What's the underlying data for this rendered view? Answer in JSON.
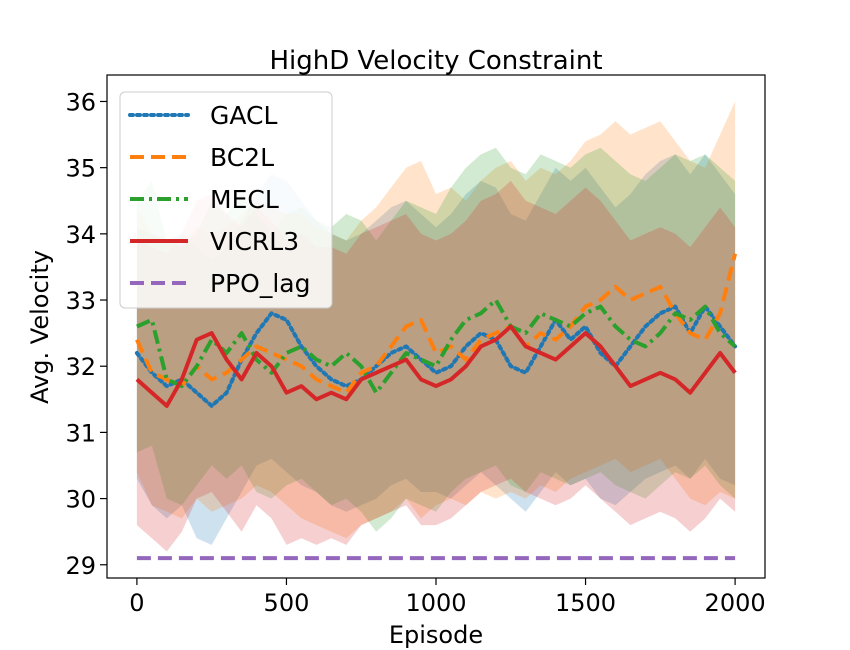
{
  "chart_data": {
    "type": "line",
    "title": "HighD Velocity Constraint",
    "xlabel": "Episode",
    "ylabel": "Avg. Velocity",
    "xlim": [
      -100,
      2100
    ],
    "ylim": [
      28.8,
      36.4
    ],
    "xticks": [
      0,
      500,
      1000,
      1500,
      2000
    ],
    "yticks": [
      29,
      30,
      31,
      32,
      33,
      34,
      35,
      36
    ],
    "grid": false,
    "legend_position": "top-left",
    "series": [
      {
        "name": "GACL",
        "color": "#1f77b4",
        "style": "dotted",
        "x": [
          0,
          50,
          100,
          150,
          200,
          250,
          300,
          350,
          400,
          450,
          500,
          550,
          600,
          650,
          700,
          750,
          800,
          850,
          900,
          950,
          1000,
          1050,
          1100,
          1150,
          1200,
          1250,
          1300,
          1350,
          1400,
          1450,
          1500,
          1550,
          1600,
          1650,
          1700,
          1750,
          1800,
          1850,
          1900,
          1950,
          2000
        ],
        "y": [
          32.2,
          31.9,
          31.7,
          31.8,
          31.6,
          31.4,
          31.6,
          32.1,
          32.5,
          32.8,
          32.7,
          32.3,
          32.0,
          31.8,
          31.7,
          31.8,
          32.0,
          32.2,
          32.3,
          32.1,
          31.9,
          32.0,
          32.3,
          32.5,
          32.4,
          32.0,
          31.9,
          32.3,
          32.7,
          32.4,
          32.6,
          32.2,
          32.0,
          32.3,
          32.6,
          32.8,
          32.9,
          32.5,
          32.9,
          32.6,
          32.3
        ],
        "lower": [
          30.3,
          29.9,
          29.7,
          29.9,
          29.4,
          29.3,
          29.7,
          30.1,
          30.5,
          30.6,
          30.4,
          30.2,
          30.1,
          29.9,
          29.8,
          29.9,
          30.0,
          30.2,
          30.3,
          30.1,
          30.1,
          30.0,
          30.2,
          30.4,
          30.2,
          30.0,
          29.8,
          30.1,
          30.4,
          30.2,
          30.3,
          30.0,
          29.9,
          30.1,
          30.3,
          30.4,
          30.5,
          30.3,
          30.6,
          30.3,
          30.2
        ],
        "upper": [
          34.1,
          34.0,
          33.9,
          34.0,
          33.8,
          33.6,
          33.8,
          34.2,
          34.6,
          34.9,
          34.8,
          34.5,
          34.2,
          34.0,
          33.9,
          34.0,
          34.2,
          34.4,
          34.5,
          34.3,
          34.1,
          34.3,
          34.6,
          34.8,
          34.7,
          34.3,
          34.2,
          34.6,
          35.0,
          34.8,
          35.0,
          34.7,
          34.4,
          34.6,
          34.9,
          35.1,
          35.2,
          34.9,
          35.2,
          34.9,
          34.6
        ]
      },
      {
        "name": "BC2L",
        "color": "#ff7f0e",
        "style": "dashed",
        "x": [
          0,
          50,
          100,
          150,
          200,
          250,
          300,
          350,
          400,
          450,
          500,
          550,
          600,
          650,
          700,
          750,
          800,
          850,
          900,
          950,
          1000,
          1050,
          1100,
          1150,
          1200,
          1250,
          1300,
          1350,
          1400,
          1450,
          1500,
          1550,
          1600,
          1650,
          1700,
          1750,
          1800,
          1850,
          1900,
          1950,
          2000
        ],
        "y": [
          32.4,
          31.9,
          31.8,
          31.7,
          32.0,
          31.8,
          31.9,
          32.1,
          32.3,
          32.2,
          32.1,
          32.0,
          31.8,
          31.7,
          31.6,
          31.9,
          32.0,
          32.3,
          32.6,
          32.7,
          32.2,
          32.3,
          32.1,
          32.4,
          32.5,
          32.6,
          32.3,
          32.5,
          32.4,
          32.6,
          32.9,
          33.0,
          33.2,
          33.0,
          33.1,
          33.2,
          32.8,
          32.5,
          32.4,
          32.8,
          33.7
        ],
        "lower": [
          30.4,
          29.9,
          29.8,
          29.7,
          30.0,
          29.8,
          29.9,
          30.0,
          30.2,
          30.1,
          29.9,
          29.7,
          29.6,
          29.5,
          29.4,
          29.6,
          29.7,
          29.8,
          30.0,
          29.7,
          29.9,
          30.0,
          29.9,
          30.1,
          30.0,
          30.1,
          30.0,
          30.2,
          30.1,
          30.3,
          30.4,
          30.5,
          30.6,
          30.4,
          30.5,
          30.6,
          30.3,
          30.0,
          29.9,
          30.1,
          30.0
        ],
        "upper": [
          34.4,
          34.0,
          33.9,
          33.8,
          34.1,
          34.0,
          34.1,
          34.3,
          34.5,
          34.4,
          34.3,
          34.3,
          34.1,
          34.0,
          33.9,
          34.2,
          34.4,
          34.7,
          35.0,
          35.1,
          34.6,
          34.7,
          34.5,
          34.8,
          35.0,
          35.1,
          34.8,
          35.0,
          34.9,
          35.1,
          35.4,
          35.5,
          35.7,
          35.5,
          35.6,
          35.7,
          35.4,
          35.1,
          35.0,
          35.5,
          36.0
        ]
      },
      {
        "name": "MECL",
        "color": "#2ca02c",
        "style": "dashdot",
        "x": [
          0,
          50,
          100,
          150,
          200,
          250,
          300,
          350,
          400,
          450,
          500,
          550,
          600,
          650,
          700,
          750,
          800,
          850,
          900,
          950,
          1000,
          1050,
          1100,
          1150,
          1200,
          1250,
          1300,
          1350,
          1400,
          1450,
          1500,
          1550,
          1600,
          1650,
          1700,
          1750,
          1800,
          1850,
          1900,
          1950,
          2000
        ],
        "y": [
          32.6,
          32.7,
          31.8,
          31.7,
          32.0,
          32.4,
          32.2,
          32.5,
          32.1,
          31.9,
          32.2,
          32.3,
          32.1,
          32.0,
          32.2,
          32.0,
          31.6,
          31.9,
          32.2,
          32.1,
          32.0,
          32.4,
          32.7,
          32.8,
          33.0,
          32.6,
          32.5,
          32.8,
          32.7,
          32.6,
          32.8,
          32.9,
          32.6,
          32.4,
          32.3,
          32.5,
          32.8,
          32.7,
          32.9,
          32.5,
          32.3
        ],
        "lower": [
          30.7,
          30.8,
          30.0,
          29.9,
          30.2,
          30.5,
          30.3,
          30.5,
          30.1,
          30.0,
          30.2,
          30.3,
          30.1,
          29.9,
          30.0,
          29.8,
          29.5,
          29.7,
          30.0,
          29.9,
          29.8,
          30.1,
          30.3,
          30.4,
          30.5,
          30.2,
          30.1,
          30.4,
          30.3,
          30.2,
          30.3,
          30.4,
          30.2,
          30.1,
          30.0,
          30.2,
          30.4,
          30.3,
          30.5,
          30.2,
          30.0
        ],
        "upper": [
          34.5,
          34.8,
          33.9,
          33.8,
          34.0,
          34.5,
          34.3,
          34.6,
          34.3,
          34.0,
          34.3,
          34.4,
          34.2,
          34.1,
          34.3,
          34.2,
          33.9,
          34.2,
          34.5,
          34.4,
          34.3,
          34.7,
          35.0,
          35.2,
          35.3,
          35.0,
          34.9,
          35.2,
          35.1,
          35.0,
          35.2,
          35.3,
          35.1,
          34.9,
          34.8,
          35.0,
          35.2,
          35.1,
          35.2,
          35.0,
          34.8
        ]
      },
      {
        "name": "VICRL3",
        "color": "#d62728",
        "style": "solid",
        "x": [
          0,
          50,
          100,
          150,
          200,
          250,
          300,
          350,
          400,
          450,
          500,
          550,
          600,
          650,
          700,
          750,
          800,
          850,
          900,
          950,
          1000,
          1050,
          1100,
          1150,
          1200,
          1250,
          1300,
          1350,
          1400,
          1450,
          1500,
          1550,
          1600,
          1650,
          1700,
          1750,
          1800,
          1850,
          1900,
          1950,
          2000
        ],
        "y": [
          31.8,
          31.6,
          31.4,
          31.8,
          32.4,
          32.5,
          32.1,
          31.8,
          32.2,
          32.0,
          31.6,
          31.7,
          31.5,
          31.6,
          31.5,
          31.8,
          31.9,
          32.0,
          32.1,
          31.8,
          31.7,
          31.8,
          32.0,
          32.3,
          32.4,
          32.6,
          32.3,
          32.2,
          32.1,
          32.3,
          32.5,
          32.3,
          32.0,
          31.7,
          31.8,
          31.9,
          31.8,
          31.6,
          31.9,
          32.2,
          31.9
        ],
        "lower": [
          29.6,
          29.4,
          29.2,
          29.5,
          30.0,
          30.1,
          29.8,
          29.5,
          29.9,
          29.7,
          29.3,
          29.4,
          29.3,
          29.4,
          29.3,
          29.6,
          29.7,
          29.8,
          29.9,
          29.6,
          29.6,
          29.7,
          29.9,
          30.1,
          30.2,
          30.3,
          30.1,
          30.0,
          29.9,
          30.0,
          30.2,
          30.0,
          29.8,
          29.6,
          29.7,
          29.8,
          29.7,
          29.5,
          29.7,
          30.0,
          29.8
        ],
        "upper": [
          33.9,
          33.8,
          33.7,
          34.0,
          34.5,
          34.6,
          34.3,
          34.1,
          34.4,
          34.2,
          33.9,
          34.0,
          33.8,
          33.8,
          33.7,
          34.0,
          34.1,
          34.2,
          34.3,
          34.0,
          33.9,
          34.0,
          34.2,
          34.5,
          34.6,
          34.8,
          34.5,
          34.4,
          34.3,
          34.5,
          34.7,
          34.5,
          34.2,
          33.9,
          34.0,
          34.1,
          34.0,
          33.8,
          34.1,
          34.4,
          34.1
        ]
      },
      {
        "name": "PPO_lag",
        "color": "#9467bd",
        "style": "dashed",
        "x": [
          0,
          2000
        ],
        "y": [
          29.1,
          29.1
        ]
      }
    ]
  }
}
